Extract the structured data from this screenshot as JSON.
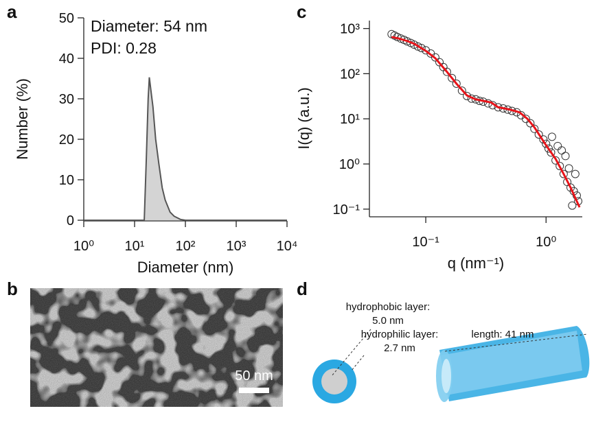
{
  "panel_labels": [
    "a",
    "b",
    "c",
    "d"
  ],
  "chart_data": [
    {
      "type": "area",
      "xlabel": "Diameter (nm)",
      "ylabel": "Number (%)",
      "annotations": [
        "Diameter: 54 nm",
        "PDI: 0.28"
      ],
      "xscale": "log",
      "xlim": [
        1,
        10000
      ],
      "ylim": [
        0,
        50
      ],
      "xticks": [
        {
          "value": 1,
          "label": "10⁰"
        },
        {
          "value": 10,
          "label": "10¹"
        },
        {
          "value": 100,
          "label": "10²"
        },
        {
          "value": 1000,
          "label": "10³"
        },
        {
          "value": 10000,
          "label": "10⁴"
        }
      ],
      "yticks": [
        0,
        10,
        20,
        30,
        40,
        50
      ],
      "color": "#555555",
      "fill": "#d4d4d4",
      "x": [
        1,
        15.5,
        17,
        18.5,
        19.5,
        21,
        23,
        26,
        30,
        35,
        40,
        50,
        60,
        80,
        100,
        10000
      ],
      "values": [
        0,
        0,
        15,
        30,
        35.3,
        32,
        28,
        20,
        14,
        8,
        5,
        2,
        1,
        0.2,
        0,
        0
      ]
    },
    {
      "type": "scatter",
      "xlabel": "q (nm⁻¹)",
      "ylabel": "I(q) (a.u.)",
      "xscale": "log",
      "yscale": "log",
      "xlim": [
        0.034,
        2.0
      ],
      "ylim": [
        0.07,
        1500
      ],
      "xticks": [
        {
          "value": 0.1,
          "label": "10⁻¹"
        },
        {
          "value": 1,
          "label": "10⁰"
        }
      ],
      "yticks": [
        {
          "value": 1000,
          "label": "10³"
        },
        {
          "value": 100,
          "label": "10²"
        },
        {
          "value": 10,
          "label": "10¹"
        },
        {
          "value": 1,
          "label": "10⁰"
        },
        {
          "value": 0.1,
          "label": "10⁻¹"
        }
      ],
      "series": [
        {
          "type": "scatter",
          "color": "#333333",
          "x": [
            0.052,
            0.055,
            0.058,
            0.062,
            0.066,
            0.07,
            0.075,
            0.08,
            0.086,
            0.092,
            0.1,
            0.11,
            0.12,
            0.13,
            0.14,
            0.15,
            0.165,
            0.18,
            0.2,
            0.22,
            0.24,
            0.26,
            0.28,
            0.3,
            0.33,
            0.36,
            0.4,
            0.44,
            0.48,
            0.52,
            0.57,
            0.62,
            0.68,
            0.74,
            0.8,
            0.87,
            0.95,
            1.0,
            1.05,
            1.1,
            1.2,
            1.3,
            1.4,
            1.5,
            1.6,
            1.7,
            1.8,
            1.12,
            1.25,
            1.35,
            1.45,
            1.55,
            1.65,
            1.75,
            1.85
          ],
          "values": [
            750,
            700,
            650,
            600,
            560,
            520,
            480,
            440,
            400,
            370,
            330,
            280,
            230,
            180,
            140,
            110,
            80,
            60,
            42,
            32,
            28,
            27,
            25,
            24,
            22,
            20,
            18,
            17,
            16,
            15,
            14,
            12,
            10,
            8,
            6,
            4.5,
            3.5,
            2.8,
            2.2,
            1.8,
            1.2,
            0.9,
            0.6,
            0.4,
            0.3,
            0.25,
            0.2,
            4,
            2.5,
            2,
            1.5,
            0.8,
            0.12,
            0.6,
            0.15
          ]
        },
        {
          "type": "line",
          "color": "#e8141a",
          "x": [
            0.052,
            0.06,
            0.07,
            0.08,
            0.1,
            0.12,
            0.15,
            0.18,
            0.22,
            0.26,
            0.3,
            0.35,
            0.4,
            0.45,
            0.5,
            0.6,
            0.7,
            0.8,
            0.9,
            1.0,
            1.2,
            1.4,
            1.6,
            1.8,
            1.9
          ],
          "values": [
            650,
            600,
            530,
            460,
            320,
            220,
            110,
            60,
            33,
            27,
            25,
            23,
            18,
            17,
            16,
            14,
            10,
            6.5,
            4,
            2.6,
            1.3,
            0.6,
            0.3,
            0.15,
            0.11
          ]
        }
      ]
    }
  ],
  "micrograph": {
    "scale_bar": "50 nm"
  },
  "diagram": {
    "core_label": "hydrophobic layer:",
    "core_value": "5.0 nm",
    "shell_label": "hydrophilic layer:",
    "shell_value": "2.7 nm",
    "length_label": "length: 41 nm"
  }
}
